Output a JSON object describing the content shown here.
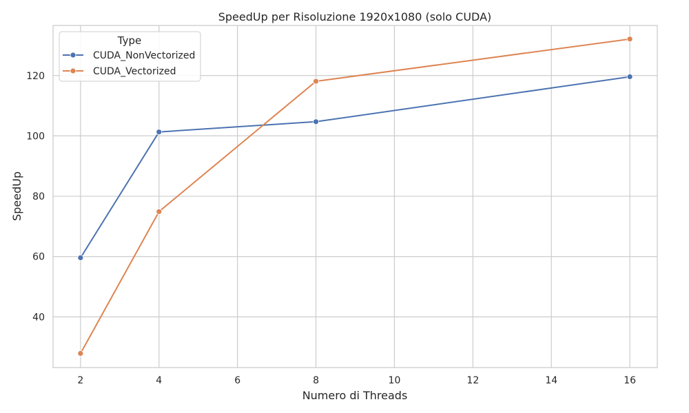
{
  "chart_data": {
    "type": "line",
    "title": "SpeedUp per Risoluzione 1920x1080 (solo CUDA)",
    "xlabel": "Numero di Threads",
    "ylabel": "SpeedUp",
    "x": [
      2,
      4,
      8,
      16
    ],
    "xticks": [
      2,
      4,
      6,
      8,
      10,
      12,
      14,
      16
    ],
    "yticks": [
      40,
      60,
      80,
      100,
      120
    ],
    "xlim": [
      1.3,
      16.7
    ],
    "ylim": [
      23.2,
      136.6
    ],
    "grid": true,
    "legend": {
      "title": "Type",
      "placement": "top-left"
    },
    "series": [
      {
        "name": "CUDA_NonVectorized",
        "color": "#4c72b0",
        "values": [
          59.6,
          101.3,
          104.7,
          119.6
        ]
      },
      {
        "name": "CUDA_Vectorized",
        "color": "#dd8452",
        "values": [
          27.9,
          74.9,
          118.1,
          132.1
        ]
      }
    ]
  }
}
